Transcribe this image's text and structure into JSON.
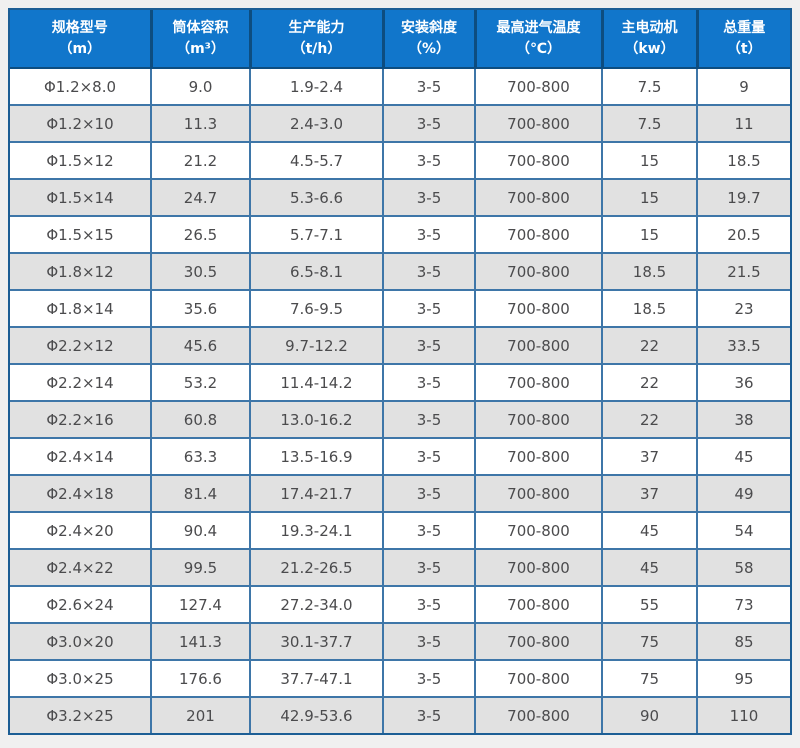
{
  "colors": {
    "header_bg": "#1176cb",
    "header_border": "#0d4d80",
    "outer_border": "#1c5e95",
    "cell_border": "#3e76a8",
    "alt_row_bg": "#e1e1e1",
    "body_text": "#4b4b4d",
    "header_text": "#ffffff",
    "page_bg": "#f0f0f0"
  },
  "chart_data": {
    "type": "table",
    "title": "",
    "columns": [
      {
        "label": "规格型号",
        "unit": "（m）"
      },
      {
        "label": "筒体容积",
        "unit": "（m³）"
      },
      {
        "label": "生产能力",
        "unit": "（t/h）"
      },
      {
        "label": "安装斜度",
        "unit": "（%）"
      },
      {
        "label": "最高进气温度",
        "unit": "（℃）"
      },
      {
        "label": "主电动机",
        "unit": "（kw）"
      },
      {
        "label": "总重量",
        "unit": "（t）"
      }
    ],
    "rows": [
      [
        "Φ1.2×8.0",
        "9.0",
        "1.9-2.4",
        "3-5",
        "700-800",
        "7.5",
        "9"
      ],
      [
        "Φ1.2×10",
        "11.3",
        "2.4-3.0",
        "3-5",
        "700-800",
        "7.5",
        "11"
      ],
      [
        "Φ1.5×12",
        "21.2",
        "4.5-5.7",
        "3-5",
        "700-800",
        "15",
        "18.5"
      ],
      [
        "Φ1.5×14",
        "24.7",
        "5.3-6.6",
        "3-5",
        "700-800",
        "15",
        "19.7"
      ],
      [
        "Φ1.5×15",
        "26.5",
        "5.7-7.1",
        "3-5",
        "700-800",
        "15",
        "20.5"
      ],
      [
        "Φ1.8×12",
        "30.5",
        "6.5-8.1",
        "3-5",
        "700-800",
        "18.5",
        "21.5"
      ],
      [
        "Φ1.8×14",
        "35.6",
        "7.6-9.5",
        "3-5",
        "700-800",
        "18.5",
        "23"
      ],
      [
        "Φ2.2×12",
        "45.6",
        "9.7-12.2",
        "3-5",
        "700-800",
        "22",
        "33.5"
      ],
      [
        "Φ2.2×14",
        "53.2",
        "11.4-14.2",
        "3-5",
        "700-800",
        "22",
        "36"
      ],
      [
        "Φ2.2×16",
        "60.8",
        "13.0-16.2",
        "3-5",
        "700-800",
        "22",
        "38"
      ],
      [
        "Φ2.4×14",
        "63.3",
        "13.5-16.9",
        "3-5",
        "700-800",
        "37",
        "45"
      ],
      [
        "Φ2.4×18",
        "81.4",
        "17.4-21.7",
        "3-5",
        "700-800",
        "37",
        "49"
      ],
      [
        "Φ2.4×20",
        "90.4",
        "19.3-24.1",
        "3-5",
        "700-800",
        "45",
        "54"
      ],
      [
        "Φ2.4×22",
        "99.5",
        "21.2-26.5",
        "3-5",
        "700-800",
        "45",
        "58"
      ],
      [
        "Φ2.6×24",
        "127.4",
        "27.2-34.0",
        "3-5",
        "700-800",
        "55",
        "73"
      ],
      [
        "Φ3.0×20",
        "141.3",
        "30.1-37.7",
        "3-5",
        "700-800",
        "75",
        "85"
      ],
      [
        "Φ3.0×25",
        "176.6",
        "37.7-47.1",
        "3-5",
        "700-800",
        "75",
        "95"
      ],
      [
        "Φ3.2×25",
        "201",
        "42.9-53.6",
        "3-5",
        "700-800",
        "90",
        "110"
      ]
    ]
  }
}
